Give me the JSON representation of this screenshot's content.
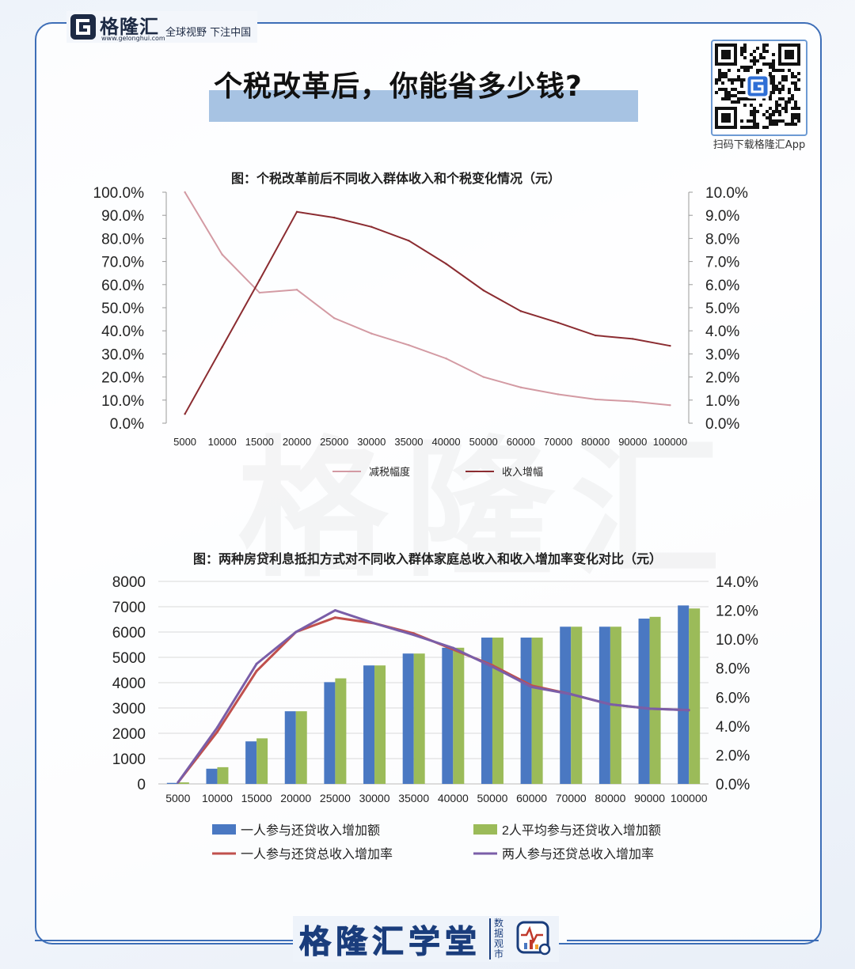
{
  "brand": {
    "name": "格隆汇",
    "domain": "www.gelonghui.com",
    "slogan": "全球视野 下注中国"
  },
  "page_title": "个税改革后，你能省多少钱?",
  "qr_caption": "扫码下载格隆汇App",
  "watermark": "格隆汇",
  "footer": {
    "name": "格隆汇学堂",
    "sub": "数据观市"
  },
  "colors": {
    "line1": "#d39aa3",
    "line2": "#8b2c31",
    "bar1": "#4a78c2",
    "bar2": "#9bbb59",
    "line3": "#c0504d",
    "line4": "#7a5ea8",
    "accent": "#3d6eb7"
  },
  "chart_data": [
    {
      "type": "line",
      "title": "图：个税改革前后不同收入群体收入和个税变化情况（元）",
      "categories": [
        "5000",
        "10000",
        "15000",
        "20000",
        "25000",
        "30000",
        "35000",
        "40000",
        "50000",
        "60000",
        "70000",
        "80000",
        "90000",
        "100000"
      ],
      "y_left": {
        "ticks": [
          "100.0%",
          "90.0%",
          "80.0%",
          "70.0%",
          "60.0%",
          "50.0%",
          "40.0%",
          "30.0%",
          "20.0%",
          "10.0%",
          "0.0%"
        ],
        "range": [
          0,
          100
        ]
      },
      "y_right": {
        "ticks": [
          "10.0%",
          "9.0%",
          "8.0%",
          "7.0%",
          "6.0%",
          "5.0%",
          "4.0%",
          "3.0%",
          "2.0%",
          "1.0%",
          "0.0%"
        ],
        "range": [
          0,
          10
        ]
      },
      "series": [
        {
          "name": "减税幅度",
          "axis": "left",
          "color": "#d39aa3",
          "values": [
            100,
            73,
            56.5,
            57.8,
            45.5,
            38.8,
            33.8,
            28,
            20,
            15.5,
            12.5,
            10.3,
            9.4,
            7.8
          ]
        },
        {
          "name": "收入增幅",
          "axis": "right",
          "color": "#8b2c31",
          "values": [
            0.4,
            3.3,
            6.2,
            9.15,
            8.9,
            8.5,
            7.9,
            6.9,
            5.75,
            4.85,
            4.35,
            3.8,
            3.65,
            3.35
          ]
        }
      ],
      "grid": false,
      "legend": "bottom"
    },
    {
      "type": "bar",
      "title": "图：两种房贷利息抵扣方式对不同收入群体家庭总收入和收入增加率变化对比（元）",
      "categories": [
        "5000",
        "10000",
        "15000",
        "20000",
        "25000",
        "30000",
        "35000",
        "40000",
        "50000",
        "60000",
        "70000",
        "80000",
        "90000",
        "100000"
      ],
      "y_left": {
        "ticks": [
          "8000",
          "7000",
          "6000",
          "5000",
          "4000",
          "3000",
          "2000",
          "1000",
          "0"
        ],
        "range": [
          0,
          8000
        ]
      },
      "y_right": {
        "ticks": [
          "14.0%",
          "12.0%",
          "10.0%",
          "8.0%",
          "6.0%",
          "4.0%",
          "2.0%",
          "0.0%"
        ],
        "range": [
          0,
          14
        ]
      },
      "series": [
        {
          "name": "一人参与还贷收入增加额",
          "kind": "bar",
          "axis": "left",
          "color": "#4a78c2",
          "values": [
            40,
            600,
            1680,
            2870,
            4020,
            4680,
            5150,
            5380,
            5780,
            5780,
            6210,
            6210,
            6530,
            7050
          ]
        },
        {
          "name": "2人平均参与还贷收入增加额",
          "kind": "bar",
          "axis": "left",
          "color": "#9bbb59",
          "values": [
            60,
            660,
            1800,
            2870,
            4170,
            4680,
            5150,
            5380,
            5780,
            5780,
            6210,
            6210,
            6600,
            6930
          ]
        },
        {
          "name": "一人参与还贷总收入增加率",
          "kind": "line",
          "axis": "right",
          "color": "#c0504d",
          "values": [
            0.1,
            3.6,
            7.8,
            10.5,
            11.5,
            11.1,
            10.4,
            9.3,
            8.2,
            6.8,
            6.2,
            5.5,
            5.2,
            5.1
          ]
        },
        {
          "name": "两人参与还贷总收入增加率",
          "kind": "line",
          "axis": "right",
          "color": "#7a5ea8",
          "values": [
            0.1,
            3.9,
            8.3,
            10.5,
            12.0,
            11.1,
            10.3,
            9.4,
            8.1,
            6.7,
            6.2,
            5.5,
            5.2,
            5.1
          ]
        }
      ],
      "grid": true,
      "legend": "bottom"
    }
  ]
}
